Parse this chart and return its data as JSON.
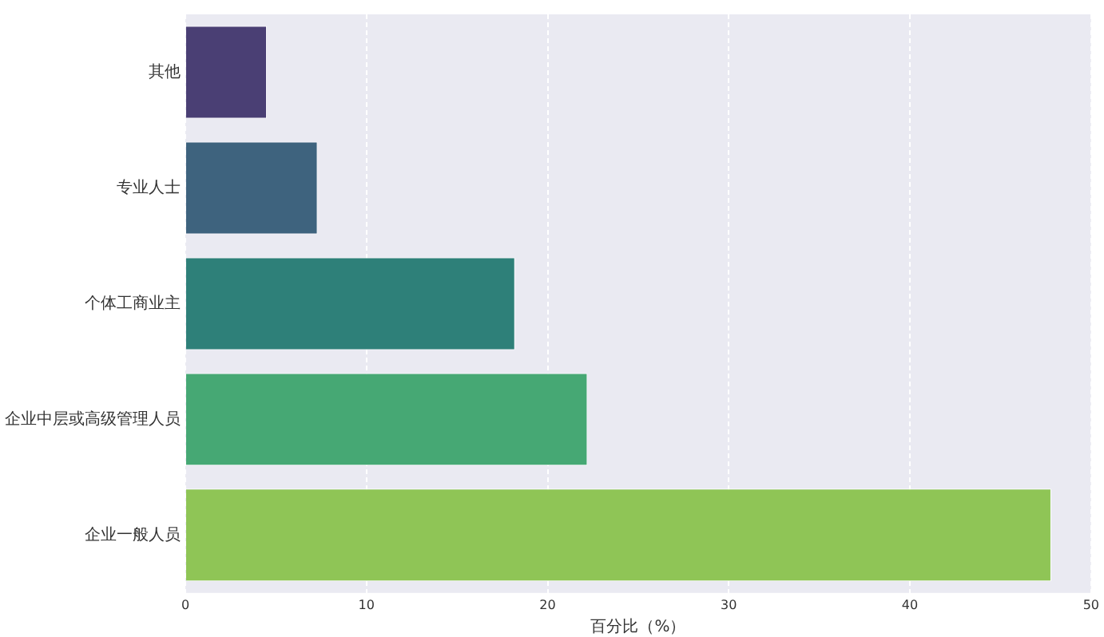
{
  "chart_data": {
    "type": "bar",
    "orientation": "horizontal",
    "xlabel": "百分比（%）",
    "categories": [
      "其他",
      "专业人士",
      "个体工商业主",
      "企业中层或高级管理人员",
      "企业一般人员"
    ],
    "values": [
      4.5,
      7.3,
      18.2,
      22.2,
      47.8
    ],
    "colors": [
      "#4a3f74",
      "#3e637e",
      "#2e8079",
      "#46a874",
      "#8fc556"
    ],
    "xlim": [
      0,
      50
    ],
    "xticks": [
      0,
      10,
      20,
      30,
      40,
      50
    ],
    "grid": "x",
    "legend": false
  }
}
